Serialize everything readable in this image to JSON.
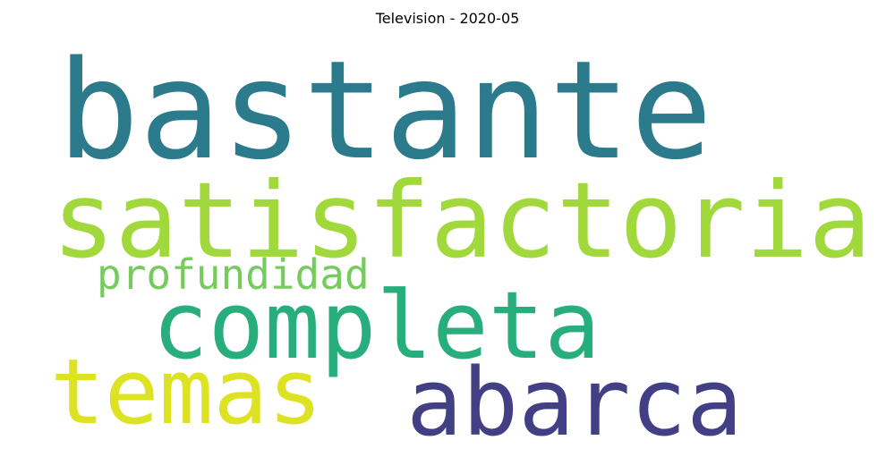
{
  "title": "Television - 2020-05",
  "words": {
    "bastante": {
      "text": "bastante",
      "color": "#2c7b8c"
    },
    "satisfactoria": {
      "text": "satisfactoria",
      "color": "#a1d83b"
    },
    "profundidad": {
      "text": "profundidad",
      "color": "#76cb5d"
    },
    "completa": {
      "text": "completa",
      "color": "#27ae7c"
    },
    "temas": {
      "text": "temas",
      "color": "#dde223"
    },
    "abarca": {
      "text": "abarca",
      "color": "#433f85"
    }
  }
}
